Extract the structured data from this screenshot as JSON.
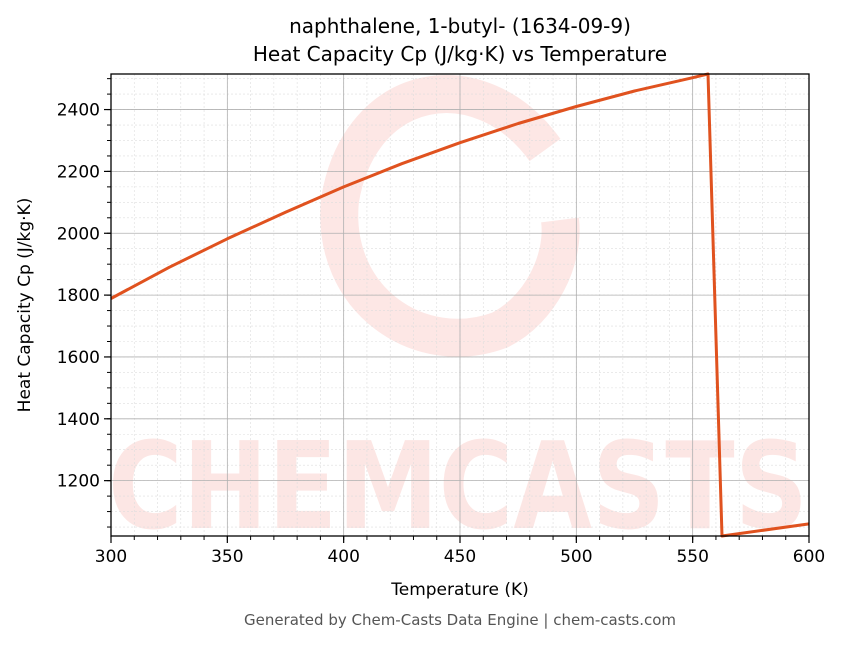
{
  "chart_data": {
    "type": "line",
    "title": "naphthalene, 1-butyl- (1634-09-9)",
    "subtitle": "Heat Capacity Cp (J/kg·K) vs Temperature",
    "xlabel": "Temperature (K)",
    "ylabel": "Heat Capacity Cp (J/kg·K)",
    "xlim": [
      300,
      600
    ],
    "ylim": [
      1021,
      2515
    ],
    "xticks": [
      300,
      350,
      400,
      450,
      500,
      550,
      600
    ],
    "yticks": [
      1200,
      1400,
      1600,
      1800,
      2000,
      2200,
      2400
    ],
    "grid": true,
    "line_color": "#e0521f",
    "series": [
      {
        "x": [
          300,
          325,
          350,
          375,
          400,
          425,
          450,
          475,
          500,
          525,
          550,
          556.6,
          562.6,
          600
        ],
        "values": [
          1789,
          1890,
          1982,
          2068,
          2150,
          2225,
          2293,
          2355,
          2410,
          2460,
          2503,
          2515,
          1021,
          1060
        ]
      }
    ]
  },
  "watermark": "CHEMCASTS",
  "footer": "Generated by Chem-Casts Data Engine | chem-casts.com"
}
